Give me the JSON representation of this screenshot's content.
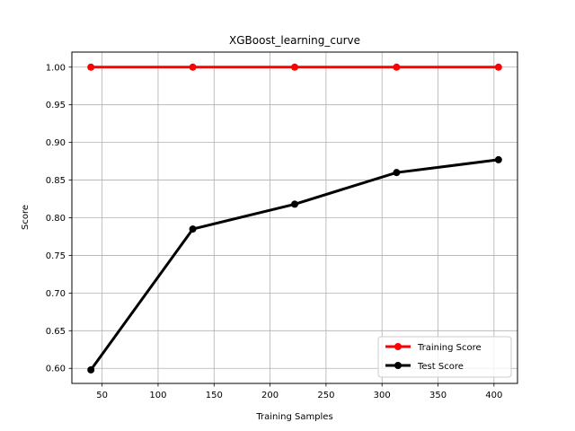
{
  "chart_data": {
    "type": "line",
    "title": "XGBoost_learning_curve",
    "xlabel": "Training Samples",
    "ylabel": "Score",
    "x": [
      40,
      131,
      222,
      313,
      404
    ],
    "xlim": [
      23,
      421
    ],
    "ylim": [
      0.58,
      1.02
    ],
    "xticks": [
      50,
      100,
      150,
      200,
      250,
      300,
      350,
      400
    ],
    "yticks": [
      0.6,
      0.65,
      0.7,
      0.75,
      0.8,
      0.85,
      0.9,
      0.95,
      1.0
    ],
    "grid": true,
    "legend_position": "lower-right",
    "series": [
      {
        "name": "Training Score",
        "color": "#ff0000",
        "values": [
          1.0,
          1.0,
          1.0,
          1.0,
          1.0
        ]
      },
      {
        "name": "Test Score",
        "color": "#000000",
        "values": [
          0.598,
          0.785,
          0.818,
          0.86,
          0.877
        ]
      }
    ]
  }
}
